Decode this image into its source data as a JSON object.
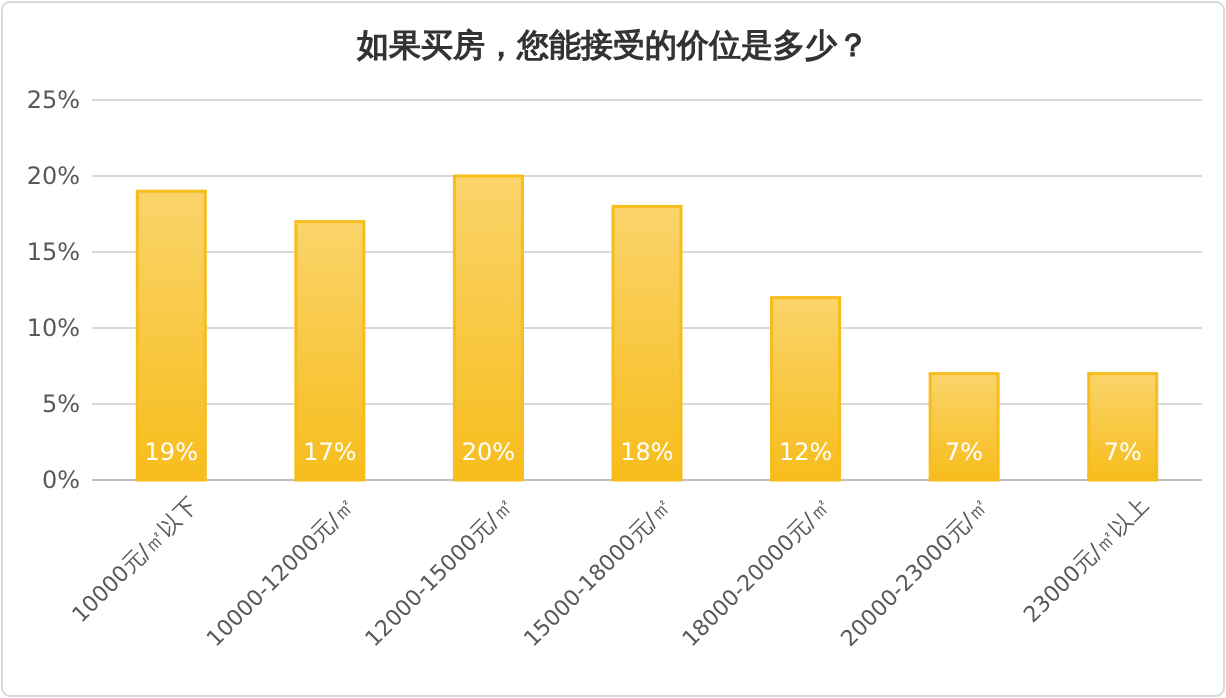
{
  "chart_data": {
    "type": "bar",
    "title": "如果买房，您能接受的价位是多少？",
    "categories": [
      "10000元/㎡以下",
      "10000-12000元/㎡",
      "12000-15000元/㎡",
      "15000-18000元/㎡",
      "18000-20000元/㎡",
      "20000-23000元/㎡",
      "23000元/㎡以上"
    ],
    "values": [
      19,
      17,
      20,
      18,
      12,
      7,
      7
    ],
    "value_labels": [
      "19%",
      "17%",
      "20%",
      "18%",
      "12%",
      "7%",
      "7%"
    ],
    "color": "#f7bd1c",
    "ylim": [
      0,
      25
    ],
    "yticks": [
      {
        "value": 0,
        "label": "0%"
      },
      {
        "value": 5,
        "label": "5%"
      },
      {
        "value": 10,
        "label": "10%"
      },
      {
        "value": 15,
        "label": "15%"
      },
      {
        "value": 20,
        "label": "20%"
      },
      {
        "value": 25,
        "label": "25%"
      }
    ],
    "grid": "y"
  }
}
